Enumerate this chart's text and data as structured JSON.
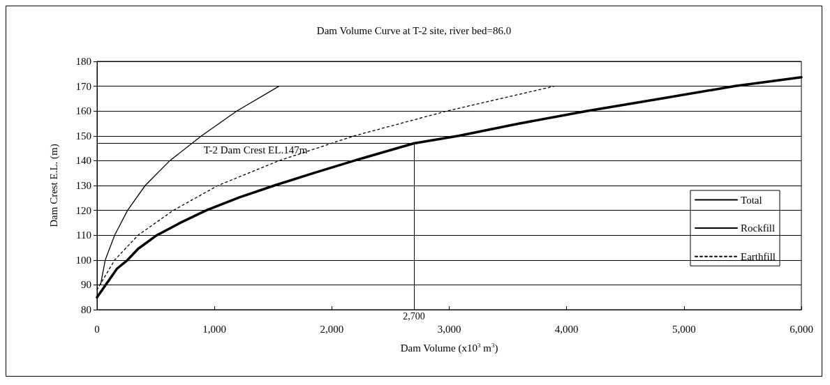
{
  "chart_data": {
    "type": "line",
    "title": "Dam Volume Curve at T-2 site, river bed=86.0",
    "xlabel": "Dam Volume (x10$^{3}$ m$^{3}$)",
    "ylabel": "Dam Crest E.L. (m)",
    "xlim": [
      0,
      6000
    ],
    "xticks": [
      {
        "value": 0,
        "label": "0"
      },
      {
        "value": 1000,
        "label": "1,000"
      },
      {
        "value": 2000,
        "label": "2,000"
      },
      {
        "value": 3000,
        "label": "3,000"
      },
      {
        "value": 4000,
        "label": "4,000"
      },
      {
        "value": 5000,
        "label": "5,000"
      },
      {
        "value": 6000,
        "label": "6,000"
      }
    ],
    "ylim": [
      80,
      180
    ],
    "yticks": [
      80,
      90,
      100,
      110,
      120,
      130,
      140,
      150,
      160,
      170,
      180
    ],
    "grid": "y",
    "legend": "right",
    "marker": "none",
    "series": [
      {
        "name": "Total",
        "color": "#000000",
        "line_style": "solid",
        "x": [
          0,
          170,
          260,
          350,
          510,
          710,
          930,
          1210,
          1510,
          1850,
          2190,
          2700,
          3080,
          3600,
          4170,
          4800,
          5430,
          6000
        ],
        "values": [
          85,
          96.5,
          100,
          104.5,
          110,
          115,
          120,
          125.2,
          130,
          135.1,
          140,
          147,
          150,
          155,
          160,
          165,
          170,
          173.6
        ]
      },
      {
        "name": "Rockfill",
        "color": "#000000",
        "line_style": "solid",
        "x": [
          30,
          70,
          150,
          260,
          410,
          620,
          890,
          1190,
          1550
        ],
        "values": [
          90,
          100,
          110,
          120,
          130,
          140,
          150,
          160,
          170
        ]
      },
      {
        "name": "Earthfill",
        "color": "#000000",
        "line_style": "dotted",
        "x": [
          0,
          150,
          350,
          650,
          1030,
          1550,
          2190,
          2980,
          3895
        ],
        "values": [
          88,
          100,
          110,
          120,
          130,
          140,
          150,
          160,
          170
        ]
      }
    ],
    "ref_lines": [
      {
        "axis": "y",
        "value": 147,
        "label": "T-2 Dam Crest EL.147m",
        "color": "#000000"
      },
      {
        "axis": "x",
        "value": 2700,
        "label": "2,700",
        "color": "#000000"
      }
    ]
  }
}
